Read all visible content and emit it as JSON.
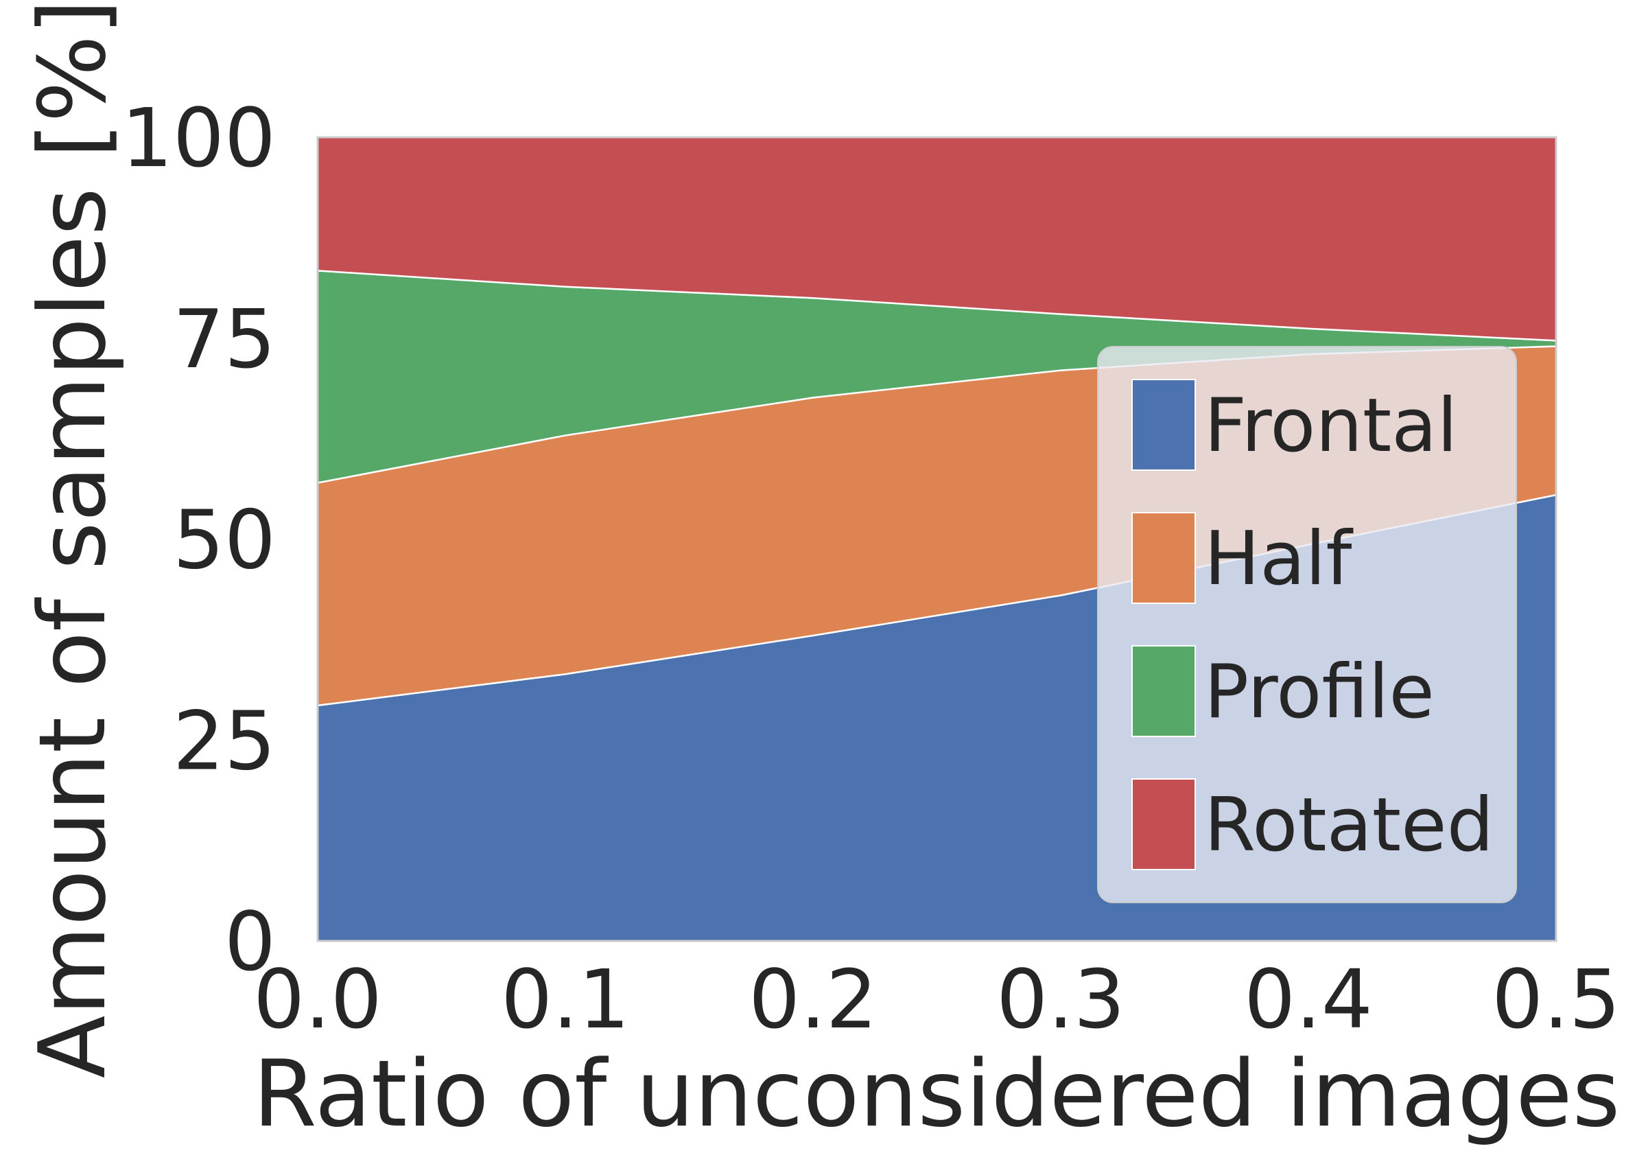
{
  "chart_data": {
    "type": "area",
    "stacked": true,
    "title": "",
    "xlabel": "Ratio of unconsidered images",
    "ylabel": "Amount of samples [%]",
    "x": [
      0.0,
      0.1,
      0.2,
      0.3,
      0.4,
      0.5
    ],
    "xticks": [
      "0.0",
      "0.1",
      "0.2",
      "0.3",
      "0.4",
      "0.5"
    ],
    "yticks": [
      "0",
      "25",
      "50",
      "75",
      "100"
    ],
    "xlim": [
      0.0,
      0.5
    ],
    "ylim": [
      0,
      100
    ],
    "grid": false,
    "legend_position": "lower-right",
    "series": [
      {
        "name": "Frontal",
        "color": "#4c72b0",
        "values": [
          29.3,
          33.2,
          38.0,
          43.0,
          49.3,
          55.5
        ]
      },
      {
        "name": "Half",
        "color": "#dd8452",
        "values": [
          27.7,
          29.7,
          29.6,
          28.0,
          23.7,
          18.5
        ]
      },
      {
        "name": "Profile",
        "color": "#55a868",
        "values": [
          26.4,
          18.5,
          12.4,
          7.0,
          3.2,
          0.7
        ]
      },
      {
        "name": "Rotated",
        "color": "#c44e52",
        "values": [
          16.6,
          18.6,
          20.0,
          22.0,
          23.8,
          25.3
        ]
      }
    ]
  }
}
